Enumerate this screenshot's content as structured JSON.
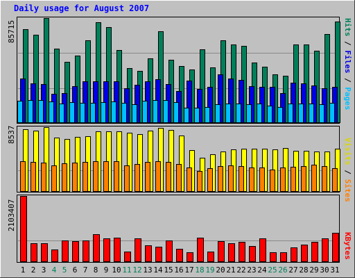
{
  "chart_data": [
    {
      "type": "bar",
      "title": "Daily usage for August 2007",
      "categories": [
        "1",
        "2",
        "3",
        "4",
        "5",
        "6",
        "7",
        "8",
        "9",
        "10",
        "11",
        "12",
        "13",
        "14",
        "15",
        "16",
        "17",
        "18",
        "19",
        "20",
        "21",
        "22",
        "23",
        "24",
        "25",
        "26",
        "27",
        "28",
        "29",
        "30",
        "31"
      ],
      "weekend_days": [
        "4",
        "5",
        "11",
        "12",
        "18",
        "19",
        "25",
        "26"
      ],
      "series": [
        {
          "name": "Hits",
          "color": "#00805a",
          "values": [
            76400,
            71800,
            85715,
            60600,
            50000,
            54900,
            67600,
            82500,
            78200,
            59200,
            44800,
            42400,
            52400,
            74900,
            51600,
            46100,
            43300,
            59900,
            45100,
            67300,
            63800,
            62900,
            49300,
            45500,
            39700,
            38500,
            64200,
            64200,
            58700,
            72600,
            83000
          ]
        },
        {
          "name": "Files",
          "color": "#0000e6",
          "values": [
            35800,
            32100,
            31500,
            23400,
            23900,
            29600,
            33700,
            34000,
            33700,
            33700,
            27800,
            31100,
            33600,
            35500,
            31600,
            26000,
            34300,
            27600,
            28900,
            39700,
            36000,
            34800,
            29600,
            29300,
            29400,
            23900,
            32700,
            32000,
            30500,
            28000,
            29100
          ]
        },
        {
          "name": "Pages",
          "color": "#00c0ff",
          "values": [
            18000,
            18100,
            18100,
            17200,
            15300,
            16600,
            15800,
            15900,
            16400,
            17300,
            15800,
            15000,
            17500,
            18200,
            18400,
            16800,
            12100,
            11800,
            12600,
            14900,
            15700,
            15300,
            14900,
            15600,
            14000,
            12700,
            15400,
            15300,
            15300,
            14700,
            15900
          ]
        }
      ],
      "ylabel": "Pages / Files / Hits",
      "ymax_label": "85715",
      "ylim": [
        0,
        85715
      ]
    },
    {
      "type": "bar",
      "categories": [
        "1",
        "2",
        "3",
        "4",
        "5",
        "6",
        "7",
        "8",
        "9",
        "10",
        "11",
        "12",
        "13",
        "14",
        "15",
        "16",
        "17",
        "18",
        "19",
        "20",
        "21",
        "22",
        "23",
        "24",
        "25",
        "26",
        "27",
        "28",
        "29",
        "30",
        "31"
      ],
      "series": [
        {
          "name": "Visits",
          "color": "#ffff00",
          "values": [
            8280,
            8050,
            8537,
            7180,
            6960,
            7250,
            7310,
            7940,
            7940,
            7940,
            7800,
            7650,
            8080,
            8440,
            8190,
            7450,
            5470,
            4410,
            4910,
            5300,
            5590,
            5680,
            5700,
            5620,
            5590,
            5750,
            5410,
            5390,
            5280,
            5330,
            5630
          ]
        },
        {
          "name": "Sites",
          "color": "#ff8000",
          "values": [
            4020,
            3910,
            3770,
            3460,
            3720,
            3800,
            3930,
            4000,
            4010,
            3960,
            3440,
            3600,
            3910,
            3990,
            3900,
            3600,
            3170,
            2690,
            3100,
            3300,
            3390,
            3310,
            3180,
            3150,
            2870,
            3120,
            3210,
            3350,
            3480,
            3320,
            3040
          ]
        }
      ],
      "ylabel": "Sites / Visits",
      "ymax_label": "8537",
      "ylim": [
        0,
        8537
      ]
    },
    {
      "type": "bar",
      "categories": [
        "1",
        "2",
        "3",
        "4",
        "5",
        "6",
        "7",
        "8",
        "9",
        "10",
        "11",
        "12",
        "13",
        "14",
        "15",
        "16",
        "17",
        "18",
        "19",
        "20",
        "21",
        "22",
        "23",
        "24",
        "25",
        "26",
        "27",
        "28",
        "29",
        "30",
        "31"
      ],
      "series": [
        {
          "name": "KBytes",
          "color": "#ff0000",
          "values": [
            2103407,
            591600,
            571000,
            390000,
            681700,
            651900,
            666200,
            869000,
            732600,
            762400,
            311600,
            741700,
            516700,
            465700,
            681900,
            403600,
            285300,
            756100,
            312600,
            638500,
            592600,
            617600,
            499100,
            741900,
            299900,
            290600,
            443300,
            536800,
            627600,
            748600,
            915800
          ]
        }
      ],
      "ylabel": "KBytes",
      "ymax_label": "2103407",
      "ylim": [
        0,
        2103407
      ]
    }
  ],
  "colors": {
    "background": "#c0c0c0",
    "title": "#0000ff",
    "weekday_label": "#000000",
    "weekend_label": "#00805a",
    "gridline": "#888888"
  }
}
